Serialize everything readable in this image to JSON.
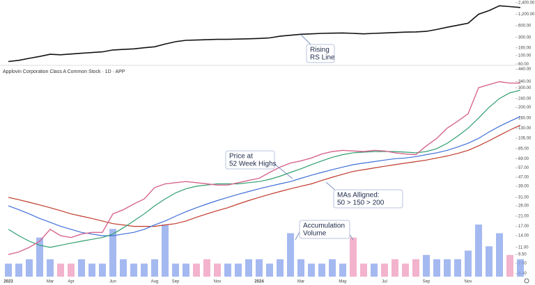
{
  "chart_data": [
    {
      "type": "line",
      "log_scale": true,
      "color": "#111111",
      "values": [
        70,
        75,
        85,
        95,
        108,
        105,
        110,
        115,
        120,
        125,
        140,
        145,
        150,
        160,
        170,
        200,
        230,
        250,
        255,
        260,
        265,
        265,
        270,
        275,
        280,
        290,
        320,
        340,
        360,
        370,
        380,
        385,
        390,
        380,
        370,
        380,
        390,
        400,
        410,
        415,
        430,
        480,
        550,
        620,
        700,
        1200,
        1500,
        2000,
        1900,
        1800
      ],
      "ylim": [
        58,
        2600
      ],
      "yticks": [
        {
          "value": 2400,
          "label": "2,400.00"
        },
        {
          "value": 1200,
          "label": "1,200.00"
        },
        {
          "value": 600,
          "label": "600.00"
        },
        {
          "value": 300,
          "label": "300.00"
        },
        {
          "value": 160,
          "label": "160.00"
        },
        {
          "value": 100,
          "label": "100.00"
        },
        {
          "value": 60,
          "label": "60.00"
        }
      ],
      "annotations": [
        [
          "Rising",
          "RS Line"
        ]
      ]
    },
    {
      "type": "line",
      "log_scale": true,
      "title": "Applovin Corporation Class A Common Stock · 1D · APP",
      "categories": [
        "2023",
        null,
        null,
        null,
        "Mar",
        null,
        "Apr",
        null,
        null,
        null,
        "Jun",
        null,
        null,
        null,
        "Aug",
        null,
        "Sep",
        null,
        null,
        null,
        "Nov",
        null,
        null,
        null,
        "2024",
        null,
        null,
        null,
        "Mar",
        null,
        null,
        null,
        "May",
        null,
        null,
        null,
        "Jul",
        null,
        null,
        null,
        "Sep",
        null,
        null,
        null,
        "Nov",
        null,
        null,
        null,
        null,
        null
      ],
      "series": [
        {
          "color": "#d6658f",
          "values": [
            9.5,
            10,
            11,
            12.5,
            16,
            14,
            13.5,
            14.5,
            15,
            15,
            22,
            24,
            27,
            30,
            38,
            41,
            42,
            43,
            42,
            41,
            40,
            40,
            42,
            44,
            46,
            52,
            58,
            63,
            66,
            70,
            76,
            80,
            82,
            81,
            80,
            82,
            81,
            78,
            76,
            75,
            90,
            105,
            130,
            150,
            175,
            300,
            320,
            340,
            330,
            330
          ]
        },
        {
          "color": "#2e9e6e",
          "values": [
            16,
            14,
            12.5,
            11.5,
            11,
            11.5,
            12,
            12.5,
            13,
            13.5,
            14.5,
            16.5,
            19,
            22,
            26,
            30,
            34,
            37,
            39,
            40,
            41,
            41,
            41,
            42,
            43,
            45,
            48,
            52,
            56,
            61,
            66,
            71,
            75,
            78,
            79,
            80,
            80,
            80,
            79,
            78,
            80,
            85,
            95,
            110,
            130,
            160,
            200,
            240,
            270,
            285
          ]
        },
        {
          "color": "#3f6fd8",
          "values": [
            26,
            24,
            22,
            20,
            18.5,
            17,
            16,
            15,
            14.5,
            14,
            14,
            14.5,
            15,
            16,
            17.5,
            19,
            21,
            23,
            25,
            27,
            29,
            31,
            33,
            35,
            37,
            39,
            41,
            43,
            46,
            49,
            52,
            55,
            58,
            61,
            63,
            65,
            67,
            69,
            70,
            72,
            75,
            78,
            82,
            88,
            95,
            105,
            120,
            135,
            150,
            165
          ]
        },
        {
          "color": "#c0392b",
          "values": [
            31,
            29.5,
            28,
            26.5,
            25,
            23.5,
            22,
            21,
            20,
            19,
            18,
            17.5,
            17,
            17,
            17,
            17.5,
            18,
            19,
            20.5,
            22,
            23.5,
            25,
            27,
            29,
            31,
            33,
            35,
            37,
            39,
            41,
            44,
            47,
            50,
            53,
            55,
            57,
            59,
            61,
            63,
            65,
            67,
            70,
            73,
            77,
            82,
            90,
            100,
            112,
            125,
            138
          ]
        }
      ],
      "volume": {
        "up_color": "#8fa8ee",
        "down_color": "#f0a0bf",
        "values": [
          3,
          3,
          4,
          9,
          4,
          3,
          3,
          4,
          3,
          3,
          11,
          4,
          3,
          3,
          4,
          12,
          3,
          3,
          3,
          4,
          3,
          3,
          3,
          4,
          4,
          3,
          4,
          10,
          4,
          3,
          3,
          4,
          3,
          9,
          3,
          3,
          3,
          4,
          3,
          4,
          5,
          4,
          4,
          4,
          6,
          12,
          7,
          10,
          5,
          4
        ]
      },
      "ylim": [
        6.0,
        470
      ],
      "yticks": [
        {
          "value": 440,
          "label": "440.00"
        },
        {
          "value": 340,
          "label": "340.00"
        },
        {
          "value": 300,
          "label": "300.00"
        },
        {
          "value": 240,
          "label": "240.00"
        },
        {
          "value": 200,
          "label": "200.00"
        },
        {
          "value": 160,
          "label": "160.00"
        },
        {
          "value": 130,
          "label": "130.00"
        },
        {
          "value": 105,
          "label": "105.00"
        },
        {
          "value": 85,
          "label": "85.00"
        },
        {
          "value": 69,
          "label": "69.00"
        },
        {
          "value": 57,
          "label": "57.00"
        },
        {
          "value": 47,
          "label": "47.00"
        },
        {
          "value": 39,
          "label": "39.00"
        },
        {
          "value": 31,
          "label": "31.00"
        },
        {
          "value": 26,
          "label": "26.00"
        },
        {
          "value": 21,
          "label": "21.00"
        },
        {
          "value": 17,
          "label": "17.00"
        },
        {
          "value": 14,
          "label": "14.00"
        },
        {
          "value": 11,
          "label": "11.00"
        },
        {
          "value": 9.5,
          "label": "9.50"
        },
        {
          "value": 7.9,
          "label": "7.90"
        },
        {
          "value": 6.4,
          "label": "6.40"
        }
      ],
      "annotations": [
        [
          "Price at",
          "52 Week Highs"
        ],
        [
          "MAs Alligned:",
          "50 > 150 > 200"
        ],
        [
          "Accumulation",
          "Volume"
        ]
      ]
    }
  ]
}
